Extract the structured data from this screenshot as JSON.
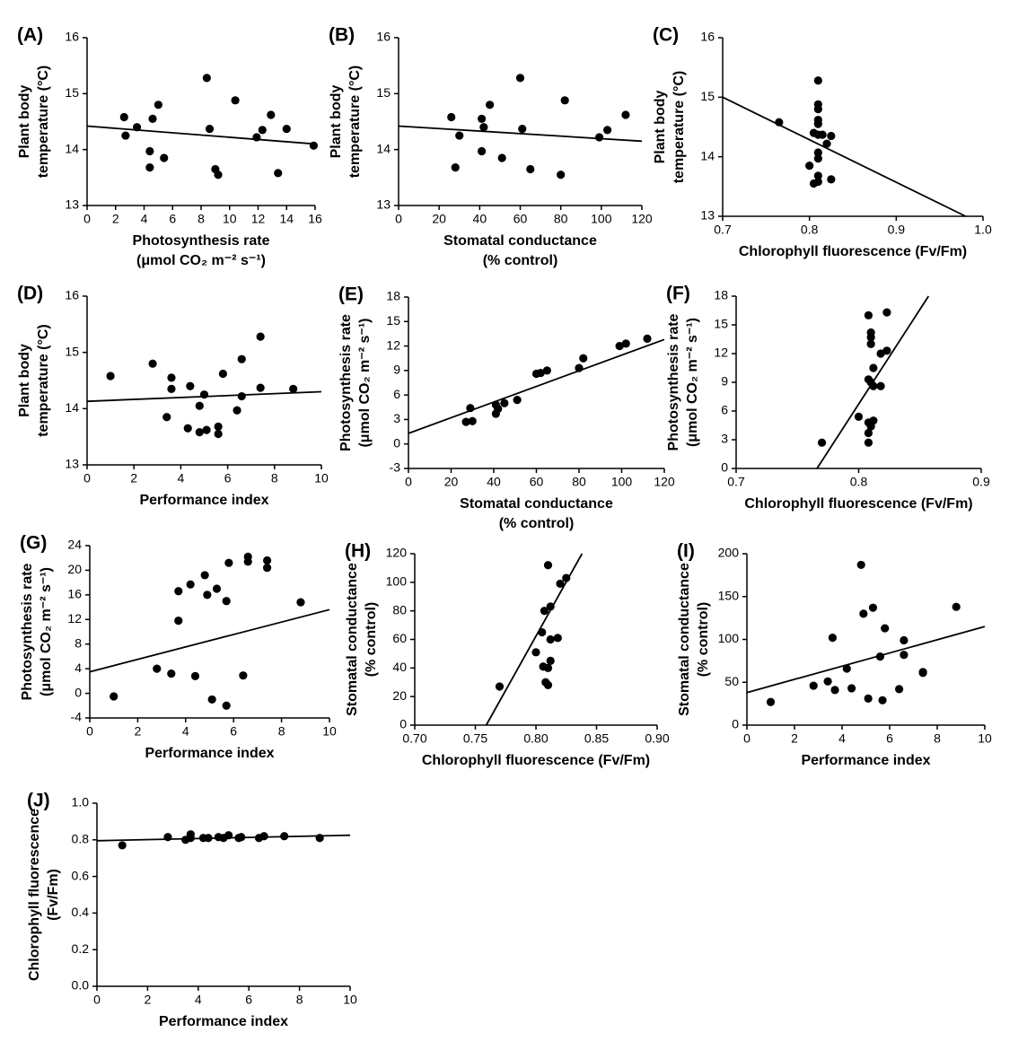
{
  "chart_data": [
    {
      "type": "scatter",
      "panel_label": "(A)",
      "x_label": [
        "Photosynthesis rate",
        "(μmol CO₂ m⁻² s⁻¹)"
      ],
      "y_label": [
        "Plant body",
        "temperature (°C)"
      ],
      "color": "#000000",
      "x": [
        2.6,
        2.7,
        3.5,
        4.6,
        5,
        4.4,
        4.4,
        5.4,
        8.4,
        8.6,
        9,
        9.2,
        10.4,
        11.9,
        12.3,
        12.9,
        13.4,
        14,
        15.9
      ],
      "y": [
        14.58,
        14.25,
        14.4,
        14.55,
        14.8,
        13.97,
        13.68,
        13.85,
        15.28,
        14.37,
        13.65,
        13.55,
        14.88,
        14.22,
        14.35,
        14.62,
        13.58,
        14.37,
        14.07
      ],
      "trendline": {
        "x": [
          0,
          16
        ],
        "y": [
          14.42,
          14.1
        ]
      },
      "xlim": [
        0,
        16
      ],
      "xticks": [
        0,
        2,
        4,
        6,
        8,
        10,
        12,
        14,
        16
      ],
      "ylim": [
        13,
        16
      ],
      "yticks": [
        13,
        14,
        15,
        16
      ]
    },
    {
      "type": "scatter",
      "panel_label": "(B)",
      "x_label": [
        "Stomatal conductance",
        "(% control)"
      ],
      "y_label": [
        "Plant body",
        "temperature (°C)"
      ],
      "color": "#000000",
      "x": [
        26,
        28,
        30,
        41,
        42,
        41,
        45,
        51,
        60,
        61,
        65,
        80,
        82,
        99,
        103,
        112
      ],
      "y": [
        14.58,
        13.68,
        14.25,
        14.55,
        14.4,
        13.97,
        14.8,
        13.85,
        15.28,
        14.37,
        13.65,
        13.55,
        14.88,
        14.22,
        14.35,
        14.62
      ],
      "trendline": {
        "x": [
          0,
          120
        ],
        "y": [
          14.42,
          14.15
        ]
      },
      "xlim": [
        0,
        120
      ],
      "xticks": [
        0,
        20,
        40,
        60,
        80,
        100,
        120
      ],
      "ylim": [
        13,
        16
      ],
      "yticks": [
        13,
        14,
        15,
        16
      ]
    },
    {
      "type": "scatter",
      "panel_label": "(C)",
      "x_label": [
        "Chlorophyll fluorescence (Fv/Fm)"
      ],
      "y_label": [
        "Plant body",
        "temperature (°C)"
      ],
      "color": "#000000",
      "x": [
        0.765,
        0.81,
        0.81,
        0.81,
        0.81,
        0.81,
        0.805,
        0.81,
        0.815,
        0.825,
        0.82,
        0.81,
        0.81,
        0.8,
        0.81,
        0.81,
        0.805,
        0.825
      ],
      "y": [
        14.58,
        15.28,
        14.88,
        14.8,
        14.62,
        14.55,
        14.4,
        14.37,
        14.37,
        14.35,
        14.22,
        14.07,
        13.97,
        13.85,
        13.68,
        13.58,
        13.55,
        13.62
      ],
      "trendline": {
        "x": [
          0.7,
          0.98
        ],
        "y": [
          15.0,
          13.0
        ]
      },
      "xlim": [
        0.7,
        1.0
      ],
      "xticks": [
        0.7,
        0.8,
        0.9,
        {
          "value": 1,
          "label": "1.0"
        }
      ],
      "ylim": [
        13,
        16
      ],
      "yticks": [
        13,
        14,
        15,
        16
      ]
    },
    {
      "type": "scatter",
      "panel_label": "(D)",
      "x_label": [
        "Performance index"
      ],
      "y_label": [
        "Plant body",
        "temperature (°C)"
      ],
      "color": "#000000",
      "x": [
        1,
        2.8,
        3.6,
        3.6,
        4.4,
        3.4,
        4.3,
        4.8,
        5,
        4.8,
        5.1,
        5.6,
        5.6,
        5.8,
        6.4,
        6.6,
        6.6,
        7.4,
        7.4,
        8.8
      ],
      "y": [
        14.58,
        14.8,
        14.55,
        14.35,
        14.4,
        13.85,
        13.65,
        14.05,
        14.25,
        13.58,
        13.62,
        13.68,
        13.55,
        14.62,
        13.97,
        14.88,
        14.22,
        15.28,
        14.37,
        14.35
      ],
      "trendline": {
        "x": [
          0,
          10
        ],
        "y": [
          14.13,
          14.3
        ]
      },
      "xlim": [
        0,
        10
      ],
      "xticks": [
        0,
        2,
        4,
        6,
        8,
        10
      ],
      "ylim": [
        13,
        16
      ],
      "yticks": [
        13,
        14,
        15,
        16
      ]
    },
    {
      "type": "scatter",
      "panel_label": "(E)",
      "x_label": [
        "Stomatal conductance",
        "(% control)"
      ],
      "y_label": [
        "Photosynthesis rate",
        "(μmol CO₂ m⁻² s⁻¹)"
      ],
      "color": "#000000",
      "x": [
        27,
        30,
        29,
        41,
        41,
        42,
        45,
        51,
        60,
        62,
        65,
        80,
        82,
        99,
        102,
        112
      ],
      "y": [
        2.7,
        2.8,
        4.4,
        4.8,
        3.7,
        4.3,
        5,
        5.4,
        8.6,
        8.7,
        9,
        9.3,
        10.5,
        12,
        12.3,
        12.9
      ],
      "trendline": {
        "x": [
          0,
          120
        ],
        "y": [
          1.3,
          12.8
        ]
      },
      "xlim": [
        0,
        120
      ],
      "xticks": [
        0,
        20,
        40,
        60,
        80,
        100,
        120
      ],
      "ylim": [
        -3,
        18
      ],
      "yticks": [
        -3,
        0,
        3,
        6,
        9,
        12,
        15,
        18
      ]
    },
    {
      "type": "scatter",
      "panel_label": "(F)",
      "x_label": [
        "Chlorophyll fluorescence (Fv/Fm)"
      ],
      "y_label": [
        "Photosynthesis rate",
        "(μmol CO₂ m⁻² s⁻¹)"
      ],
      "color": "#000000",
      "x": [
        0.77,
        0.8,
        0.808,
        0.81,
        0.81,
        0.81,
        0.808,
        0.81,
        0.812,
        0.812,
        0.808,
        0.81,
        0.812,
        0.808,
        0.808,
        0.818,
        0.818,
        0.823,
        0.823
      ],
      "y": [
        2.7,
        5.4,
        16,
        14.2,
        13.7,
        13,
        9.3,
        9,
        8.6,
        10.5,
        4.8,
        4.4,
        5,
        3.7,
        2.7,
        8.6,
        12,
        16.3,
        12.3
      ],
      "trendline": {
        "x": [
          0.766,
          0.857
        ],
        "y": [
          0,
          18
        ]
      },
      "xlim": [
        0.7,
        0.9
      ],
      "xticks": [
        0.7,
        0.8,
        0.9
      ],
      "ylim": [
        0,
        18
      ],
      "yticks": [
        0,
        3,
        6,
        9,
        12,
        15,
        18
      ]
    },
    {
      "type": "scatter",
      "panel_label": "(G)",
      "x_label": [
        "Performance index"
      ],
      "y_label": [
        "Photosynthesis rate",
        "(μmol CO₂ m⁻² s⁻¹)"
      ],
      "color": "#000000",
      "x": [
        1,
        2.8,
        3.4,
        3.7,
        3.7,
        4.2,
        4.4,
        4.8,
        4.9,
        5.1,
        5.3,
        5.7,
        5.7,
        5.8,
        6.4,
        6.6,
        6.6,
        7.4,
        7.4,
        8.8
      ],
      "y": [
        -0.5,
        4,
        3.2,
        11.8,
        16.6,
        17.7,
        2.8,
        19.2,
        16,
        -1,
        17,
        15,
        -2,
        21.2,
        2.9,
        22.2,
        21.4,
        21.6,
        20.4,
        14.8
      ],
      "trendline": {
        "x": [
          0,
          10
        ],
        "y": [
          3.5,
          13.6
        ]
      },
      "xlim": [
        0,
        10
      ],
      "xticks": [
        0,
        2,
        4,
        6,
        8,
        10
      ],
      "ylim": [
        -4,
        24
      ],
      "yticks": [
        -4,
        0,
        4,
        8,
        12,
        16,
        20,
        24
      ]
    },
    {
      "type": "scatter",
      "panel_label": "(H)",
      "x_label": [
        "Chlorophyll fluorescence (Fv/Fm)"
      ],
      "y_label": [
        "Stomatal conductance",
        "(% control)"
      ],
      "color": "#000000",
      "x": [
        0.77,
        0.8,
        0.805,
        0.807,
        0.806,
        0.81,
        0.808,
        0.81,
        0.81,
        0.812,
        0.812,
        0.812,
        0.818,
        0.82,
        0.825
      ],
      "y": [
        27,
        51,
        65,
        80,
        41,
        40,
        30,
        28,
        112,
        83,
        45,
        60,
        61,
        99,
        103
      ],
      "trendline": {
        "x": [
          0.759,
          0.838
        ],
        "y": [
          0,
          120
        ]
      },
      "xlim": [
        0.7,
        0.9
      ],
      "xticks": [
        {
          "value": 0.7,
          "label": "0.70"
        },
        0.75,
        {
          "value": 0.8,
          "label": "0.80"
        },
        0.85,
        {
          "value": 0.9,
          "label": "0.90"
        }
      ],
      "ylim": [
        0,
        120
      ],
      "yticks": [
        0,
        20,
        40,
        60,
        80,
        100,
        120
      ]
    },
    {
      "type": "scatter",
      "panel_label": "(I)",
      "x_label": [
        "Performance index"
      ],
      "y_label": [
        "Stomatal conductance",
        "(% control)"
      ],
      "color": "#000000",
      "x": [
        1,
        2.8,
        3.4,
        3.6,
        3.7,
        4.2,
        4.4,
        4.8,
        4.9,
        5.1,
        5.3,
        5.7,
        5.6,
        5.8,
        6.4,
        6.6,
        6.6,
        7.4,
        7.4,
        8.8
      ],
      "y": [
        27,
        46,
        51,
        102,
        41,
        66,
        43,
        187,
        130,
        31,
        137,
        29,
        80,
        113,
        42,
        99,
        82,
        61,
        62,
        138
      ],
      "trendline": {
        "x": [
          0,
          10
        ],
        "y": [
          38,
          115
        ]
      },
      "xlim": [
        0,
        10
      ],
      "xticks": [
        0,
        2,
        4,
        6,
        8,
        10
      ],
      "ylim": [
        0,
        200
      ],
      "yticks": [
        0,
        50,
        100,
        150,
        200
      ]
    },
    {
      "type": "scatter",
      "panel_label": "(J)",
      "x_label": [
        "Performance index"
      ],
      "y_label": [
        "Chlorophyll fluorescence",
        "(Fv/Fm)"
      ],
      "color": "#000000",
      "x": [
        1,
        2.8,
        3.5,
        3.7,
        3.7,
        4.2,
        4.4,
        4.8,
        5,
        5.2,
        5.6,
        5.7,
        6.4,
        6.6,
        7.4,
        8.8
      ],
      "y": [
        0.77,
        0.815,
        0.8,
        0.83,
        0.81,
        0.81,
        0.81,
        0.815,
        0.81,
        0.825,
        0.81,
        0.815,
        0.81,
        0.82,
        0.82,
        0.81
      ],
      "trendline": {
        "x": [
          0,
          10
        ],
        "y": [
          0.795,
          0.825
        ]
      },
      "xlim": [
        0,
        10
      ],
      "xticks": [
        0,
        2,
        4,
        6,
        8,
        10
      ],
      "ylim": [
        0,
        1
      ],
      "yticks": [
        {
          "value": 0,
          "label": "0.0"
        },
        0.2,
        0.4,
        0.6,
        0.8,
        {
          "value": 1,
          "label": "1.0"
        }
      ]
    }
  ]
}
